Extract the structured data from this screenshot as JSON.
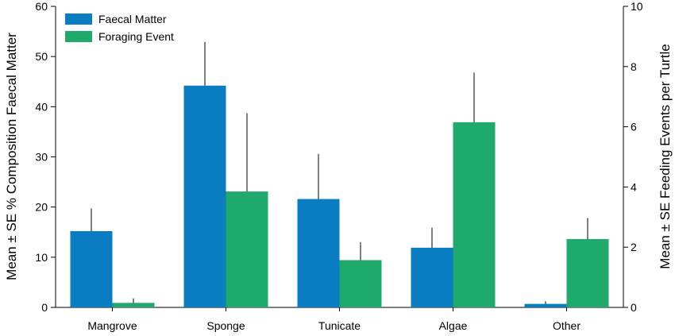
{
  "chart_data": {
    "type": "bar",
    "categories": [
      "Mangrove",
      "Sponge",
      "Tunicate",
      "Algae",
      "Other"
    ],
    "series": [
      {
        "name": "Faecal Matter",
        "axis": "left",
        "color": "#0a7cc1",
        "values": [
          15.2,
          44.2,
          21.6,
          11.9,
          0.7
        ],
        "error": [
          4.5,
          8.7,
          9.0,
          4.0,
          0.5
        ]
      },
      {
        "name": "Foraging Event",
        "axis": "right",
        "color": "#1fa96b",
        "values": [
          0.15,
          3.85,
          1.57,
          6.15,
          2.27
        ],
        "error": [
          0.15,
          2.6,
          0.6,
          1.65,
          0.7
        ]
      }
    ],
    "ylabel": "Mean ± SE % Composition Faecal Matter",
    "ylim": [
      0,
      60
    ],
    "yticks": [
      "0",
      "10",
      "20",
      "30",
      "40",
      "50",
      "60"
    ],
    "y2label": "Mean ± SE Feeding Events per Turtle",
    "y2lim": [
      0,
      10
    ],
    "y2ticks": [
      "0",
      "2",
      "4",
      "6",
      "8",
      "10"
    ],
    "legend_position": "top-left",
    "grid": false
  }
}
